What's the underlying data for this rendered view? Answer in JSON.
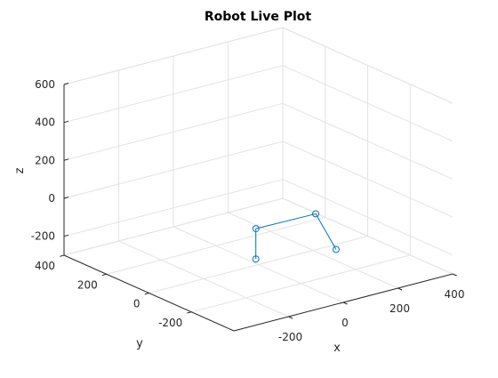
{
  "chart_data": {
    "type": "line3d",
    "title": "Robot Live Plot",
    "xlabel": "x",
    "ylabel": "y",
    "zlabel": "z",
    "xlim": [
      -400,
      400
    ],
    "ylim": [
      -400,
      400
    ],
    "zlim": [
      -300,
      600
    ],
    "xticks": [
      -200,
      0,
      200,
      400
    ],
    "yticks": [
      -200,
      0,
      200,
      400
    ],
    "zticks": [
      -200,
      0,
      200,
      400,
      600
    ],
    "grid": true,
    "view": {
      "azimuth": -37.5,
      "elevation": 30
    },
    "series": [
      {
        "marker": "circle",
        "color": "#0072BD",
        "points": [
          {
            "x": -75,
            "y": -85,
            "z": -200
          },
          {
            "x": -75,
            "y": -85,
            "z": -40
          },
          {
            "x": 140,
            "y": -90,
            "z": -40
          },
          {
            "x": 160,
            "y": -160,
            "z": -200
          }
        ]
      }
    ]
  }
}
